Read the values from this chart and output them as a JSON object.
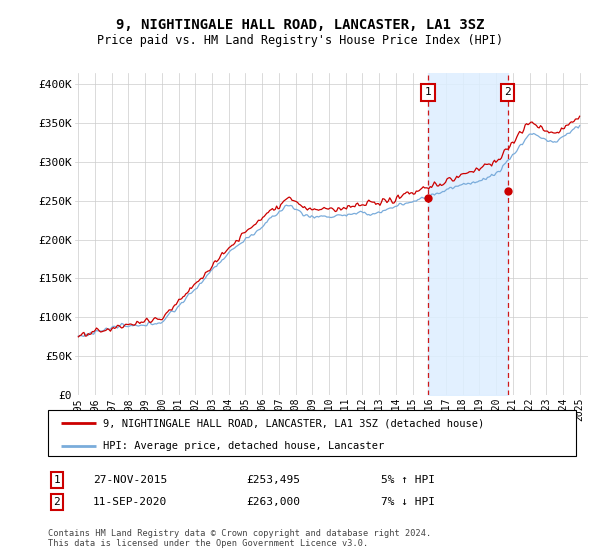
{
  "title1": "9, NIGHTINGALE HALL ROAD, LANCASTER, LA1 3SZ",
  "title2": "Price paid vs. HM Land Registry's House Price Index (HPI)",
  "legend_line1": "9, NIGHTINGALE HALL ROAD, LANCASTER, LA1 3SZ (detached house)",
  "legend_line2": "HPI: Average price, detached house, Lancaster",
  "sale1_date": "27-NOV-2015",
  "sale1_price": "£253,495",
  "sale1_hpi": "5% ↑ HPI",
  "sale1_year": 2015.92,
  "sale1_value": 253495,
  "sale2_date": "11-SEP-2020",
  "sale2_price": "£263,000",
  "sale2_hpi": "7% ↓ HPI",
  "sale2_year": 2020.7,
  "sale2_value": 263000,
  "footer": "Contains HM Land Registry data © Crown copyright and database right 2024.\nThis data is licensed under the Open Government Licence v3.0.",
  "red_color": "#cc0000",
  "blue_color": "#7aacdb",
  "fill_color": "#ddeeff",
  "yticks": [
    0,
    50000,
    100000,
    150000,
    200000,
    250000,
    300000,
    350000,
    400000
  ],
  "start_year": 1995,
  "end_year": 2025
}
